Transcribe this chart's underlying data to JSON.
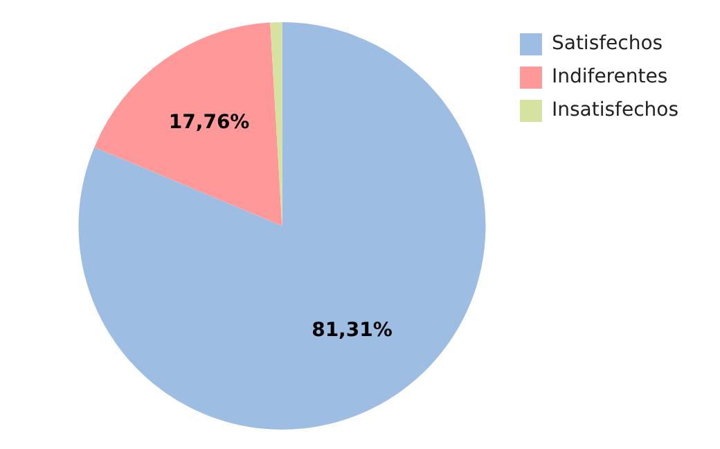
{
  "chart_data": {
    "type": "pie",
    "categories": [
      "Satisfechos",
      "Indiferentes",
      "Insatisfechos"
    ],
    "values": [
      81.31,
      17.76,
      0.93
    ],
    "colors": [
      "#9dbde2",
      "#ff9999",
      "#d6e3a0"
    ],
    "value_labels": [
      "81,31%",
      "17,76%",
      null
    ],
    "legend": "top right"
  }
}
